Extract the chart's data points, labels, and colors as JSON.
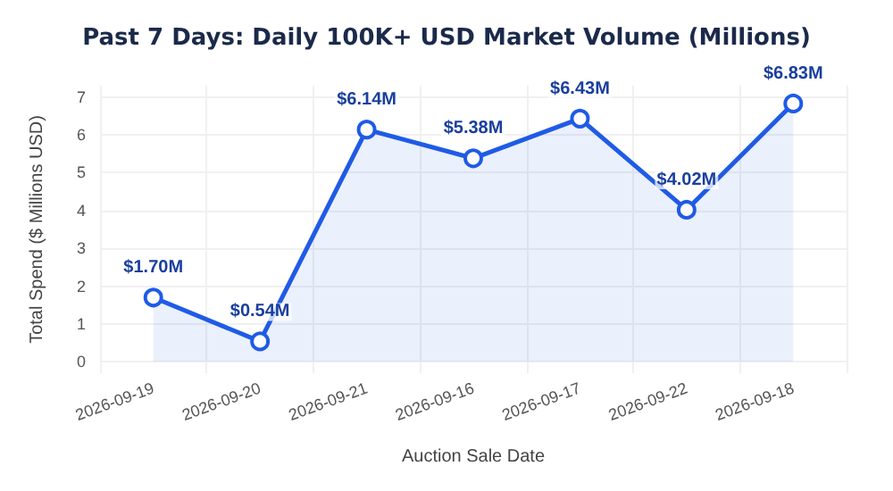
{
  "chart_data": {
    "type": "area",
    "title": "Past 7 Days: Daily 100K+ USD Market Volume (Millions)",
    "xlabel": "Auction Sale Date",
    "ylabel": "Total Spend ($ Millions USD)",
    "categories": [
      "2026-09-19",
      "2026-09-20",
      "2026-09-21",
      "2026-09-16",
      "2026-09-17",
      "2026-09-22",
      "2026-09-18"
    ],
    "series": [
      {
        "color": "#1f5be6",
        "values": [
          1.7,
          0.54,
          6.14,
          5.38,
          6.43,
          4.02,
          6.83
        ],
        "value_labels": [
          "$1.70M",
          "$0.54M",
          "$6.14M",
          "$5.38M",
          "$6.43M",
          "$4.02M",
          "$6.83M"
        ]
      }
    ],
    "ylim": [
      -0.3,
      7.3
    ],
    "yticks": [
      0,
      1,
      2,
      3,
      4,
      5,
      6,
      7
    ],
    "grid": true,
    "marker": "circle",
    "line_style": "solid"
  }
}
